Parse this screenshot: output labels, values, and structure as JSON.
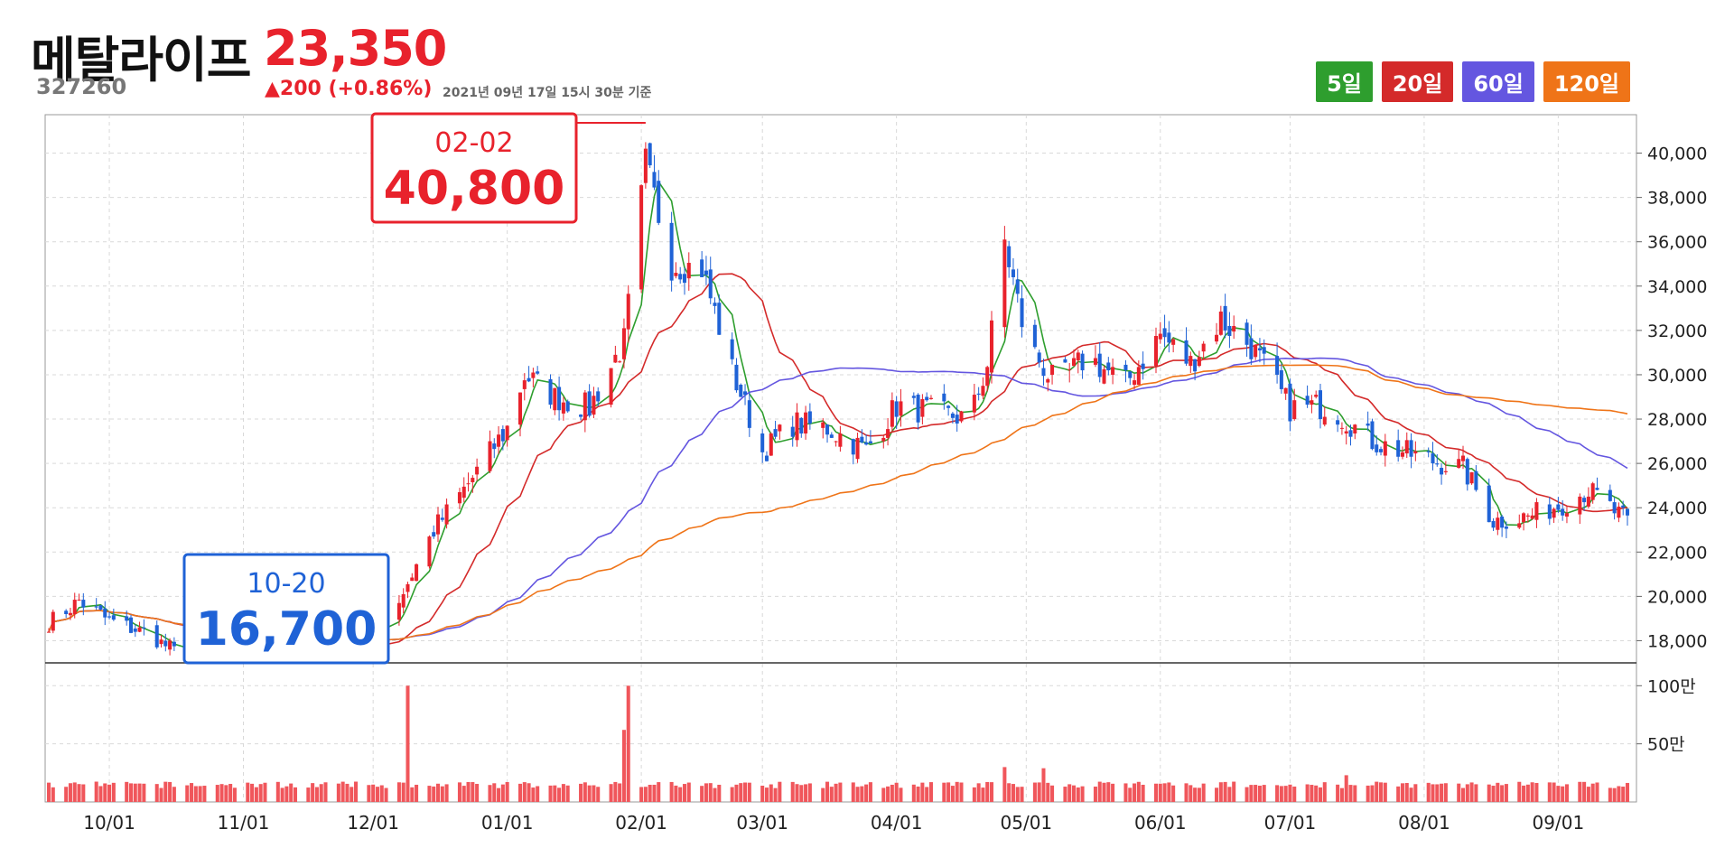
{
  "header": {
    "name": "메탈라이프",
    "price": "23,350",
    "code": "327260",
    "change": "▲200 (+0.86%)",
    "as_of": "2021년 09년 17일 15시 30분 기준"
  },
  "ma_badges": [
    {
      "label": "5일",
      "color": "#2e9e2e"
    },
    {
      "label": "20일",
      "color": "#d42a2a"
    },
    {
      "label": "60일",
      "color": "#6456e0"
    },
    {
      "label": "120일",
      "color": "#ef7418"
    }
  ],
  "colors": {
    "up": "#e8222c",
    "down": "#1f62d6",
    "volume": "#f0565b",
    "ma5": "#2e9e2e",
    "ma20": "#d42a2a",
    "ma60": "#6456e0",
    "ma120": "#ef7418",
    "grid": "#d9d9d9"
  },
  "callouts": {
    "high": {
      "date": "02-02",
      "value": "40,800",
      "color": "#e8222c"
    },
    "low": {
      "date": "10-20",
      "value": "16,700",
      "color": "#1f62d6"
    }
  },
  "chart_data": {
    "type": "candlestick",
    "x_tick_labels": [
      "10/01",
      "11/01",
      "12/01",
      "01/01",
      "02/01",
      "03/01",
      "04/01",
      "05/01",
      "06/01",
      "07/01",
      "08/01",
      "09/01"
    ],
    "price_axis": {
      "ylim": [
        17000,
        41000
      ],
      "ticks": [
        18000,
        20000,
        22000,
        24000,
        26000,
        28000,
        30000,
        32000,
        34000,
        36000,
        38000,
        40000
      ],
      "tick_labels": [
        "18,000",
        "20,000",
        "22,000",
        "24,000",
        "26,000",
        "28,000",
        "30,000",
        "32,000",
        "34,000",
        "36,000",
        "38,000",
        "40,000"
      ]
    },
    "volume_axis": {
      "ticks": [
        500000,
        1000000
      ],
      "tick_labels": [
        "50만",
        "100만"
      ]
    },
    "period_high": {
      "date": "2021-02-02",
      "value": 40800
    },
    "period_low": {
      "date": "2020-10-20",
      "value": 16700
    },
    "daily_close_anchors": [
      [
        "2020-09-17",
        18800
      ],
      [
        "2020-09-24",
        19800
      ],
      [
        "2020-10-01",
        18900
      ],
      [
        "2020-10-10",
        18300
      ],
      [
        "2020-10-20",
        17000
      ],
      [
        "2020-11-01",
        17300
      ],
      [
        "2020-11-15",
        17400
      ],
      [
        "2020-12-01",
        18200
      ],
      [
        "2020-12-08",
        20200
      ],
      [
        "2020-12-15",
        23000
      ],
      [
        "2020-12-22",
        24800
      ],
      [
        "2021-01-01",
        27600
      ],
      [
        "2021-01-05",
        30000
      ],
      [
        "2021-01-12",
        29000
      ],
      [
        "2021-01-20",
        28500
      ],
      [
        "2021-01-28",
        31500
      ],
      [
        "2021-02-02",
        39500
      ],
      [
        "2021-02-08",
        35000
      ],
      [
        "2021-02-15",
        34800
      ],
      [
        "2021-02-22",
        30200
      ],
      [
        "2021-03-01",
        26500
      ],
      [
        "2021-03-08",
        27800
      ],
      [
        "2021-03-16",
        27600
      ],
      [
        "2021-03-25",
        26600
      ],
      [
        "2021-04-01",
        28600
      ],
      [
        "2021-04-10",
        28300
      ],
      [
        "2021-04-18",
        28000
      ],
      [
        "2021-04-22",
        30500
      ],
      [
        "2021-04-26",
        36000
      ],
      [
        "2021-05-01",
        31500
      ],
      [
        "2021-05-08",
        29500
      ],
      [
        "2021-05-15",
        30800
      ],
      [
        "2021-05-24",
        29600
      ],
      [
        "2021-06-01",
        31800
      ],
      [
        "2021-06-08",
        30500
      ],
      [
        "2021-06-15",
        32500
      ],
      [
        "2021-06-22",
        31300
      ],
      [
        "2021-07-01",
        28500
      ],
      [
        "2021-07-10",
        28600
      ],
      [
        "2021-07-20",
        27000
      ],
      [
        "2021-08-01",
        26200
      ],
      [
        "2021-08-10",
        25800
      ],
      [
        "2021-08-17",
        23400
      ],
      [
        "2021-08-25",
        23600
      ],
      [
        "2021-09-01",
        24100
      ],
      [
        "2021-09-08",
        24800
      ],
      [
        "2021-09-17",
        23350
      ]
    ],
    "volume_spikes": [
      [
        "2020-12-09",
        1000000
      ],
      [
        "2021-01-29",
        1000000
      ],
      [
        "2021-01-28",
        620000
      ],
      [
        "2021-04-26",
        300000
      ],
      [
        "2021-05-05",
        290000
      ],
      [
        "2021-07-14",
        230000
      ]
    ],
    "typical_daily_volume": 140000,
    "series": [
      {
        "name": "5일"
      },
      {
        "name": "20일"
      },
      {
        "name": "60일"
      },
      {
        "name": "120일"
      }
    ]
  }
}
